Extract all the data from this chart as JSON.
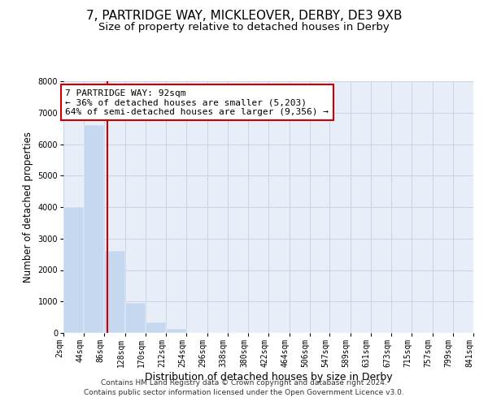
{
  "title1": "7, PARTRIDGE WAY, MICKLEOVER, DERBY, DE3 9XB",
  "title2": "Size of property relative to detached houses in Derby",
  "xlabel": "Distribution of detached houses by size in Derby",
  "ylabel": "Number of detached properties",
  "bin_edges": [
    2,
    44,
    86,
    128,
    170,
    212,
    254,
    296,
    338,
    380,
    422,
    464,
    506,
    547,
    589,
    631,
    673,
    715,
    757,
    799,
    841
  ],
  "bar_heights": [
    4000,
    6600,
    2600,
    950,
    330,
    130,
    0,
    0,
    0,
    0,
    0,
    0,
    0,
    0,
    0,
    0,
    0,
    0,
    0,
    0
  ],
  "bar_color": "#c5d8f0",
  "grid_color": "#c8d4e8",
  "background_color": "#e8eef8",
  "tick_labels": [
    "2sqm",
    "44sqm",
    "86sqm",
    "128sqm",
    "170sqm",
    "212sqm",
    "254sqm",
    "296sqm",
    "338sqm",
    "380sqm",
    "422sqm",
    "464sqm",
    "506sqm",
    "547sqm",
    "589sqm",
    "631sqm",
    "673sqm",
    "715sqm",
    "757sqm",
    "799sqm",
    "841sqm"
  ],
  "ylim": [
    0,
    8000
  ],
  "yticks": [
    0,
    1000,
    2000,
    3000,
    4000,
    5000,
    6000,
    7000,
    8000
  ],
  "property_line_x": 92,
  "property_line_color": "#cc0000",
  "annotation_line1": "7 PARTRIDGE WAY: 92sqm",
  "annotation_line2": "← 36% of detached houses are smaller (5,203)",
  "annotation_line3": "64% of semi-detached houses are larger (9,356) →",
  "annotation_box_color": "#ffffff",
  "annotation_box_edge": "#cc0000",
  "footer_text": "Contains HM Land Registry data © Crown copyright and database right 2024.\nContains public sector information licensed under the Open Government Licence v3.0.",
  "title1_fontsize": 11,
  "title2_fontsize": 9.5,
  "xlabel_fontsize": 9,
  "ylabel_fontsize": 8.5,
  "tick_fontsize": 7,
  "annotation_fontsize": 8,
  "footer_fontsize": 6.5
}
